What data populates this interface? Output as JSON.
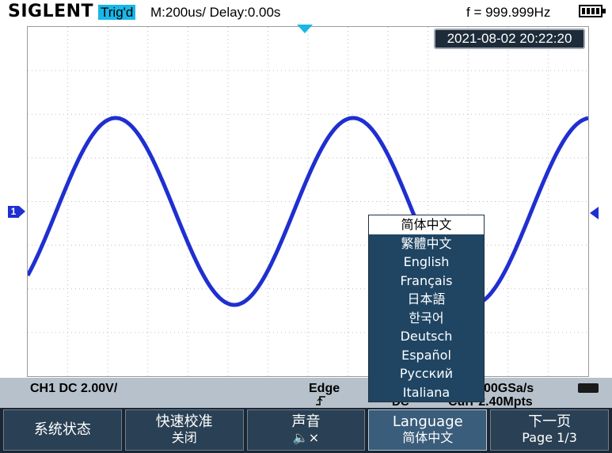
{
  "brand": "SIGLENT",
  "trigger_status": "Trig'd",
  "timebase": "M:200us/ Delay:0.00s",
  "frequency": "f = 999.999Hz",
  "datetime": "2021-08-02 20:22:20",
  "channel_marker": "1",
  "info": {
    "ch1": "CH1 DC 2.00V/",
    "trigger_type": "Edge",
    "trigger_slope_glyph": "⨍",
    "coupling": "DC",
    "sample_rate": "00GSa/s",
    "memory": "Curr 2.40Mpts"
  },
  "softkeys": [
    {
      "line1": "系统状态",
      "line2": ""
    },
    {
      "line1": "快速校准",
      "line2": "关闭"
    },
    {
      "line1": "声音",
      "line2": "🔈×"
    },
    {
      "line1": "Language",
      "line2": "简体中文"
    },
    {
      "line1": "下一页",
      "line2": "Page 1/3"
    }
  ],
  "language_menu": {
    "selected_index": 0,
    "options": [
      "简体中文",
      "繁體中文",
      "English",
      "Français",
      "日本語",
      "한국어",
      "Deutsch",
      "Español",
      "Русский",
      "Italiana"
    ]
  },
  "colors": {
    "waveform": "#1f2fd0",
    "trig_badge": "#19b7e6",
    "softbar": "#1c2733",
    "menu_bg": "#1f4563"
  }
}
